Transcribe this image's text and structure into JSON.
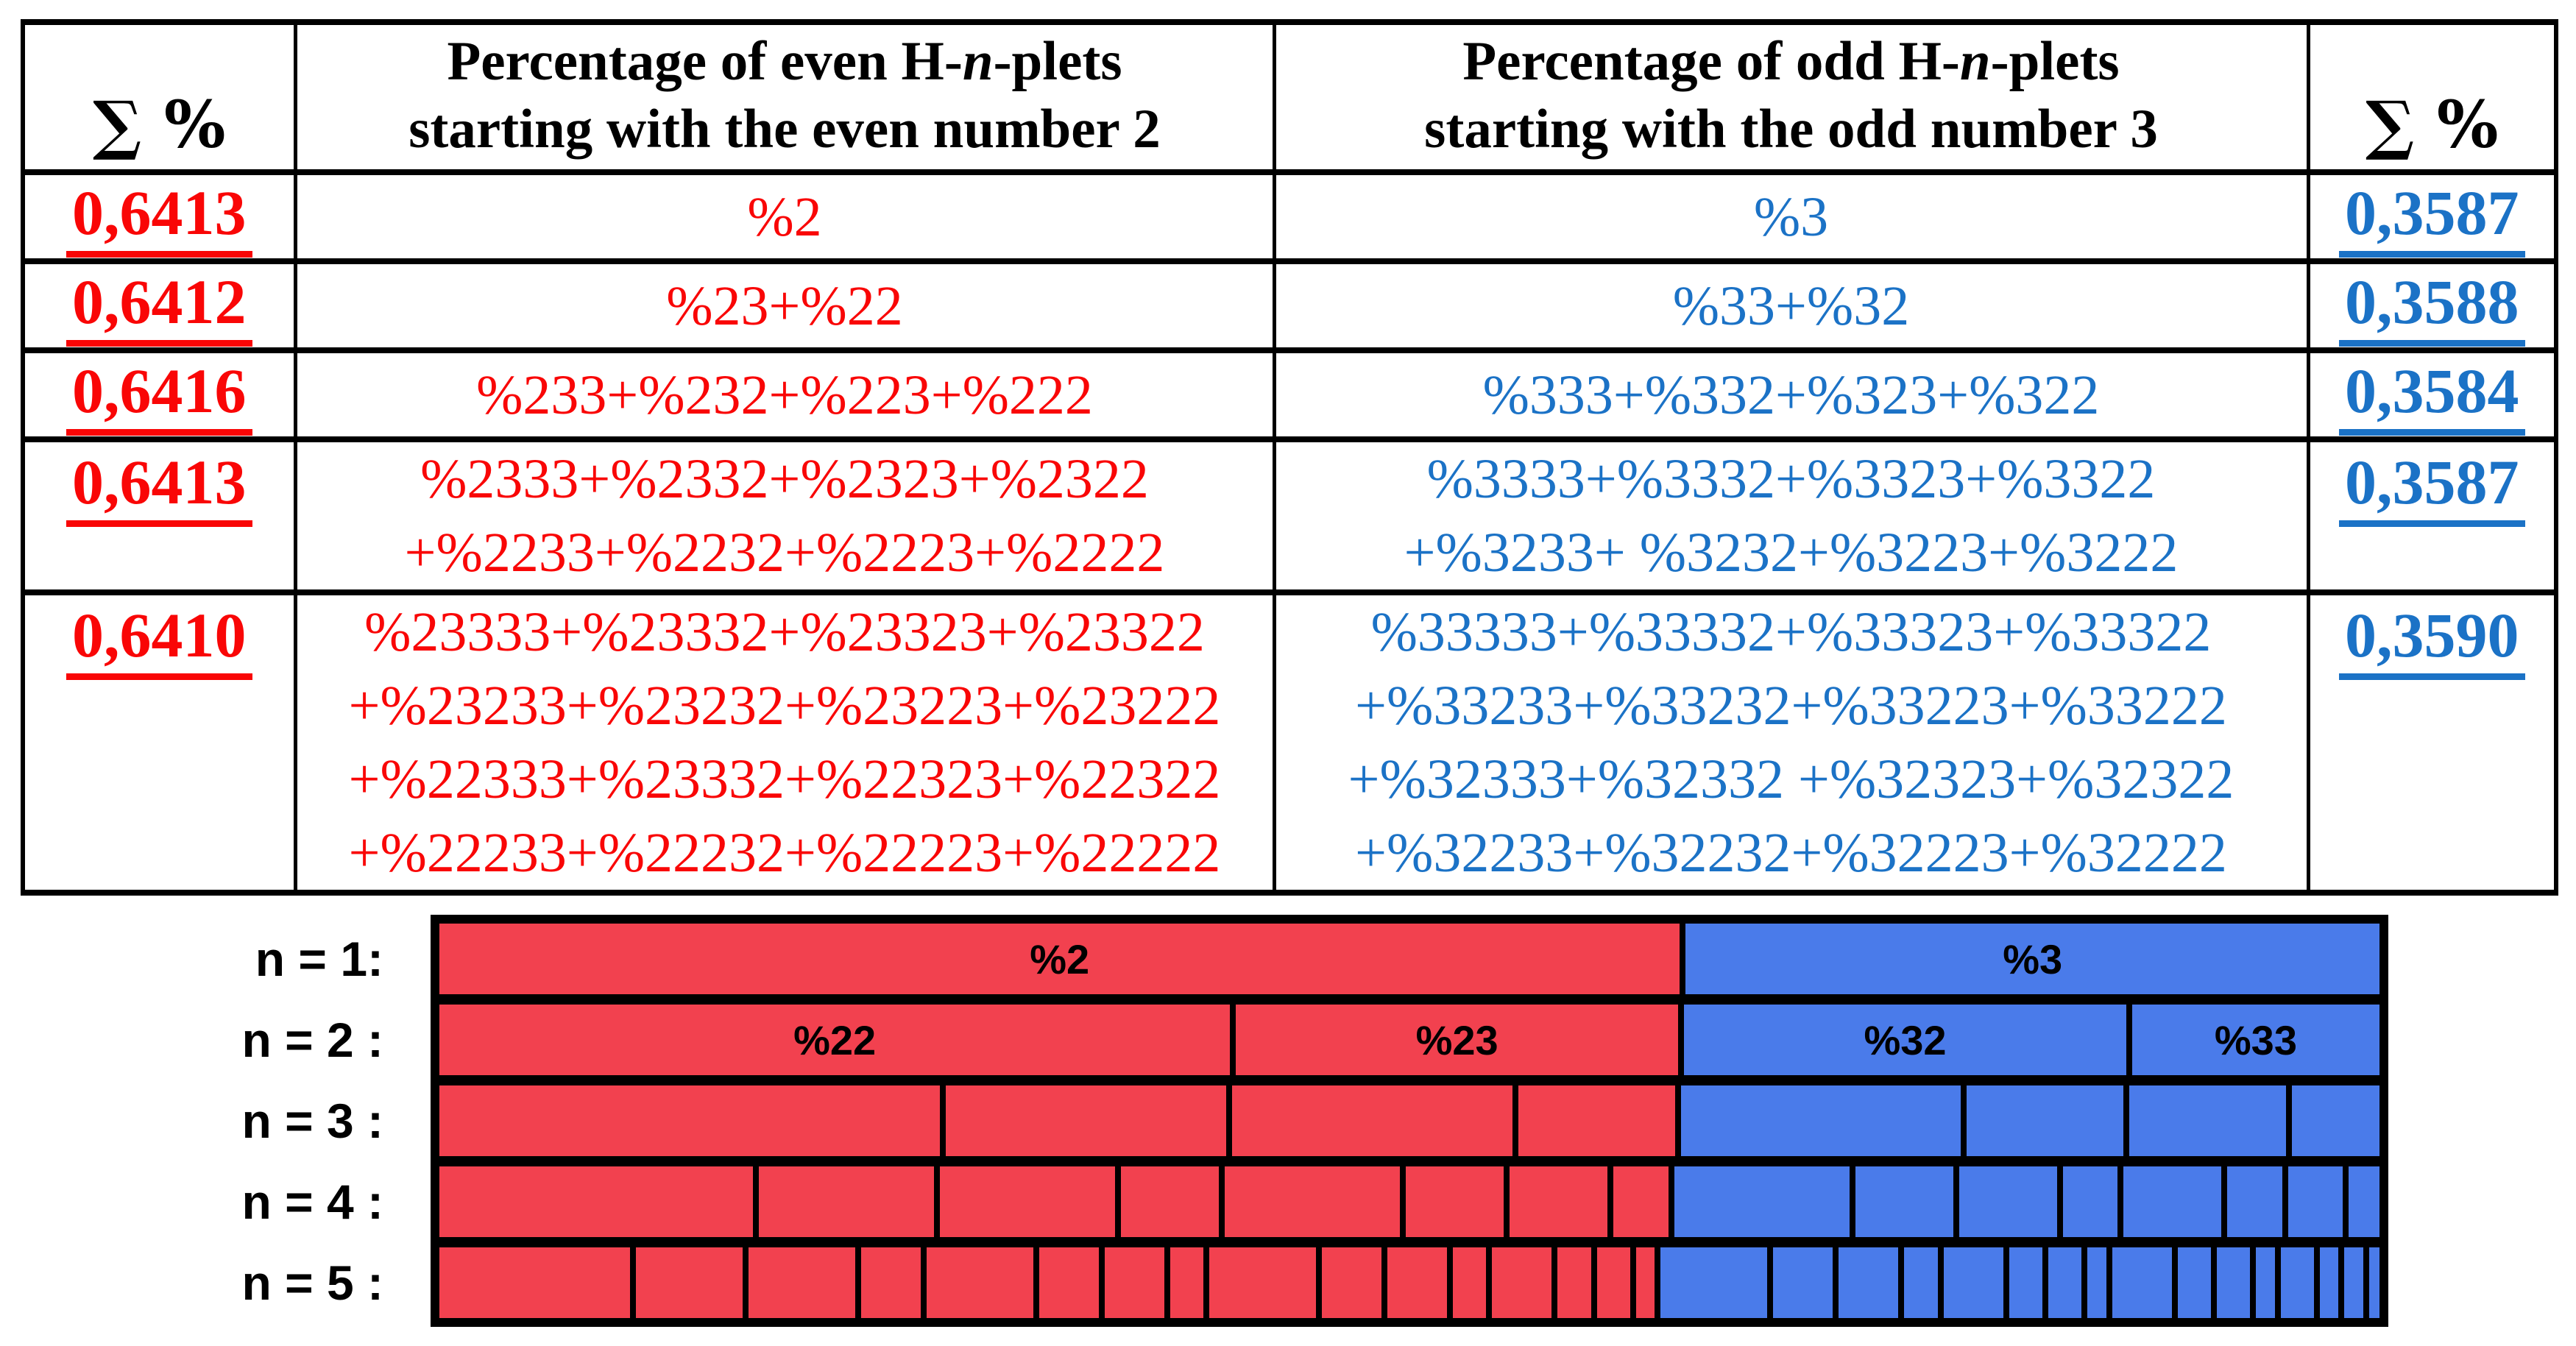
{
  "table": {
    "header": {
      "sum_left": "∑ %",
      "sum_right": "∑ %",
      "even": {
        "l1_pre": "Percentage of even H-",
        "l1_it": "n",
        "l1_post": "-plets",
        "l2": "starting with the even number 2"
      },
      "odd": {
        "l1_pre": "Percentage of odd H-",
        "l1_it": "n",
        "l1_post": "-plets",
        "l2": "starting with the odd number 3"
      }
    },
    "rows": [
      {
        "sum_left": "0,6413",
        "even": [
          "%2"
        ],
        "odd": [
          "%3"
        ],
        "sum_right": "0,3587"
      },
      {
        "sum_left": "0,6412",
        "even": [
          "%23+%22"
        ],
        "odd": [
          "%33+%32"
        ],
        "sum_right": "0,3588"
      },
      {
        "sum_left": "0,6416",
        "even": [
          "%233+%232+%223+%222"
        ],
        "odd": [
          "%333+%332+%323+%322"
        ],
        "sum_right": "0,3584"
      },
      {
        "sum_left": "0,6413",
        "even": [
          "%2333+%2332+%2323+%2322",
          "+%2233+%2232+%2223+%2222"
        ],
        "odd": [
          "%3333+%3332+%3323+%3322",
          "+%3233+ %3232+%3223+%3222"
        ],
        "sum_right": "0,3587"
      },
      {
        "sum_left": "0,6410",
        "even": [
          "%23333+%23332+%23323+%23322",
          "+%23233+%23232+%23223+%23222",
          "+%22333+%23332+%22323+%22322",
          "+%22233+%22232+%22223+%22222"
        ],
        "odd": [
          "%33333+%33332+%33323+%33322",
          "+%33233+%33232+%33223+%33222",
          "+%32333+%32332 +%32323+%32322",
          "+%32233+%32232+%32223+%32222"
        ],
        "sum_right": "0,3590"
      }
    ]
  },
  "palette": {
    "table_red_text": "#F90606",
    "table_blue_text": "#1B72C6",
    "chart_red": "#F2414F",
    "chart_blue": "#4A7BEA",
    "chart_border": "#000000"
  },
  "chart_data": {
    "type": "mosaic",
    "description": "Recursive binary partition of the unit bar: at level n each segment is a digit string over {2,3} in lexicographic order; segment width = product of p(digit).",
    "p": {
      "2": 0.6413,
      "3": 0.3587
    },
    "digits": [
      "2",
      "3"
    ],
    "rows": [
      {
        "n": 1,
        "label": "n = 1:"
      },
      {
        "n": 2,
        "label": "n = 2 :"
      },
      {
        "n": 3,
        "label": "n = 3 :"
      },
      {
        "n": 4,
        "label": "n = 4 :"
      },
      {
        "n": 5,
        "label": "n = 5 :"
      }
    ],
    "segment_labels": {
      "2": "%2",
      "3": "%3",
      "22": "%22",
      "23": "%23",
      "32": "%32",
      "33": "%33"
    },
    "labeled_values": {
      "%2": 0.6413,
      "%3": 0.3587,
      "%22": 0.4113,
      "%23": 0.23,
      "%32": 0.23,
      "%33": 0.1287
    },
    "colors": {
      "even": "#F2414F",
      "odd": "#4A7BEA",
      "border": "#000000"
    },
    "legend_position": "none",
    "grid": false
  }
}
